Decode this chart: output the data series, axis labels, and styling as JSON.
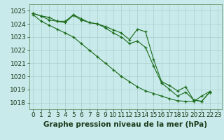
{
  "background_color": "#c8eaea",
  "grid_color": "#aecece",
  "line_color": "#1a6b1a",
  "marker_color": "#1a6b1a",
  "xlabel": "Graphe pression niveau de la mer (hPa)",
  "xlabel_fontsize": 7.5,
  "tick_fontsize": 6.5,
  "ylim": [
    1017.5,
    1025.5
  ],
  "xlim": [
    -0.5,
    23.5
  ],
  "yticks": [
    1018,
    1019,
    1020,
    1021,
    1022,
    1023,
    1024,
    1025
  ],
  "xticks": [
    0,
    1,
    2,
    3,
    4,
    5,
    6,
    7,
    8,
    9,
    10,
    11,
    12,
    13,
    14,
    15,
    16,
    17,
    18,
    19,
    20,
    21,
    22,
    23
  ],
  "line1": [
    1024.8,
    1024.6,
    1024.5,
    1024.2,
    1024.2,
    1024.7,
    1024.4,
    1024.1,
    1024.0,
    1023.8,
    1023.55,
    1023.3,
    1022.8,
    1023.6,
    1023.4,
    1021.3,
    1019.6,
    1019.3,
    1018.9,
    1019.2,
    1018.2,
    1018.1,
    1018.8
  ],
  "line2": [
    1024.8,
    1024.6,
    1024.3,
    1024.2,
    1024.1,
    1024.65,
    1024.3,
    1024.1,
    1024.0,
    1023.7,
    1023.3,
    1023.0,
    1022.5,
    1022.7,
    1022.2,
    1020.8,
    1019.5,
    1019.0,
    1018.5,
    1018.8,
    1018.2,
    1018.1,
    1018.8
  ],
  "line3": [
    1024.7,
    1024.2,
    1023.9,
    1023.6,
    1023.3,
    1023.0,
    1022.5,
    1022.0,
    1021.5,
    1021.0,
    1020.5,
    1020.0,
    1019.6,
    1019.2,
    1018.9,
    1018.7,
    1018.5,
    1018.3,
    1018.15,
    1018.1,
    1018.1,
    1018.5,
    1018.85
  ]
}
